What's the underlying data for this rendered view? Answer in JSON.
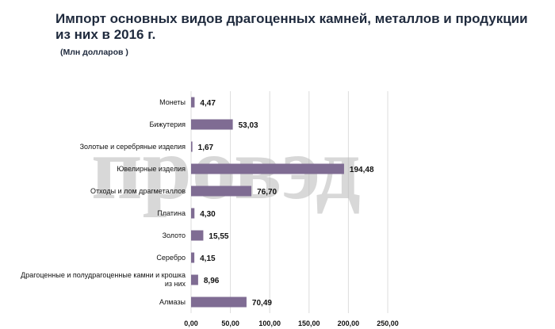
{
  "title": "Импорт основных видов драгоценных камней, металлов и продукции из них в 2016 г.",
  "subtitle": "(Млн долларов )",
  "watermark": "провэд",
  "chart_data": {
    "type": "bar",
    "orientation": "horizontal",
    "categories": [
      "Монеты",
      "Бижутерия",
      "Золотые и серебряные изделия",
      "Ювелирные изделия",
      "Отходы и лом драгметаллов",
      "Платина",
      "Золото",
      "Серебро",
      "Драгоценные и полудрагоценные камни и крошка из них",
      "Алмазы"
    ],
    "values": [
      4.47,
      53.03,
      1.67,
      194.48,
      76.7,
      4.3,
      15.55,
      4.15,
      8.96,
      70.49
    ],
    "value_labels": [
      "4,47",
      "53,03",
      "1,67",
      "194,48",
      "76,70",
      "4,30",
      "15,55",
      "4,15",
      "8,96",
      "70,49"
    ],
    "xlim": [
      0,
      250
    ],
    "xticks": [
      0,
      50,
      100,
      150,
      200,
      250
    ],
    "xtick_labels": [
      "0,00",
      "50,00",
      "100,00",
      "150,00",
      "200,00",
      "250,00"
    ],
    "grid": true,
    "bar_color": "#7f6c93",
    "grid_color": "#dcdcdc"
  }
}
